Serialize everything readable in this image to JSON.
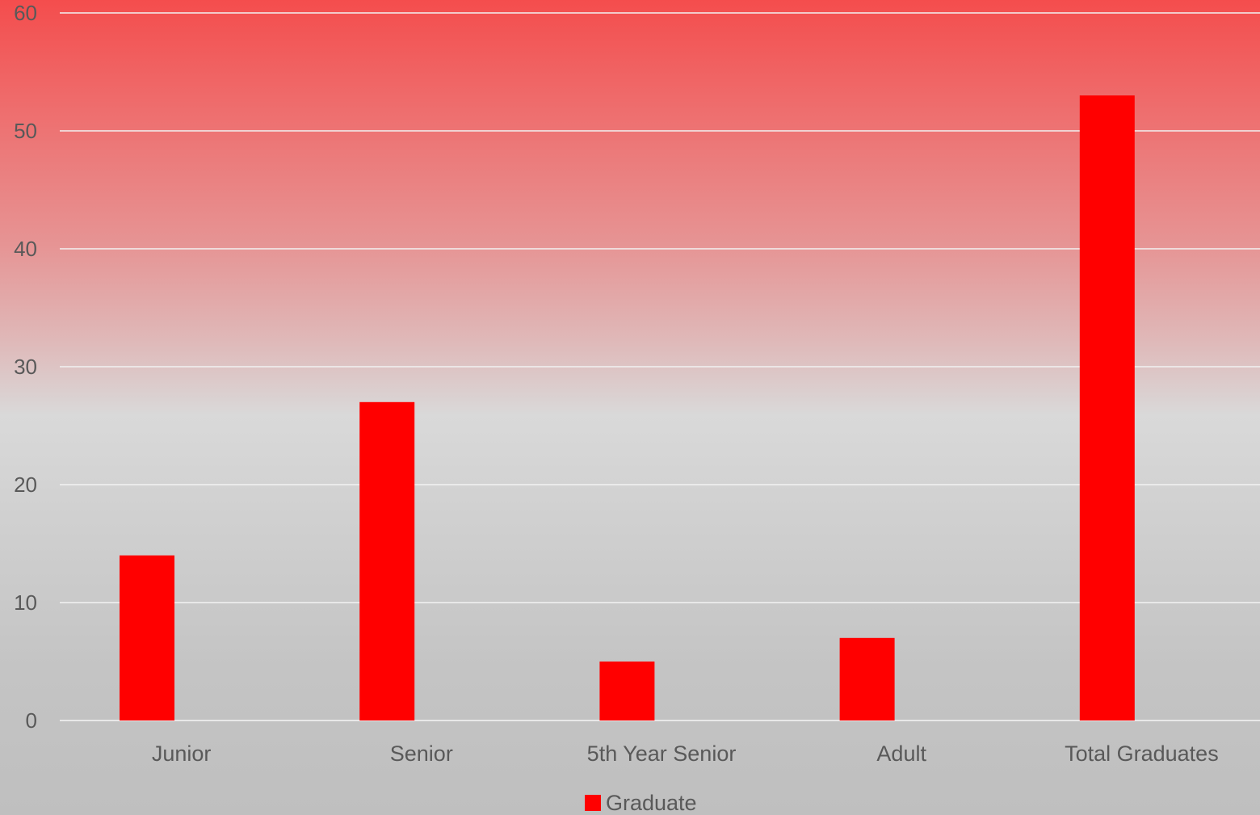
{
  "chart_data": {
    "type": "bar",
    "categories": [
      "Junior",
      "Senior",
      "5th Year Senior",
      "Adult",
      "Total Graduates"
    ],
    "series": [
      {
        "name": "Graduate",
        "values": [
          14,
          27,
          5,
          7,
          53
        ],
        "color": "#ff0000"
      }
    ],
    "ylim": [
      0,
      60
    ],
    "yticks": [
      0,
      10,
      20,
      30,
      40,
      50,
      60
    ],
    "grid": true,
    "legend": "bottom",
    "title": "",
    "xlabel": "",
    "ylabel": ""
  }
}
